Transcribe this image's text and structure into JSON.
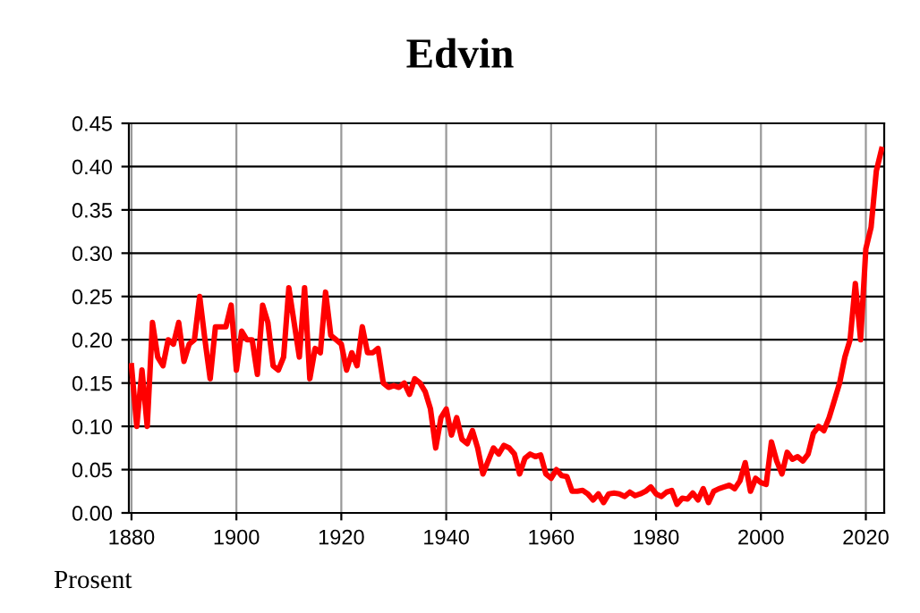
{
  "chart_data": {
    "type": "line",
    "title": "Edvin",
    "ylabel": "Prosent",
    "x": [
      1880,
      1881,
      1882,
      1883,
      1884,
      1885,
      1886,
      1887,
      1888,
      1889,
      1890,
      1891,
      1892,
      1893,
      1894,
      1895,
      1896,
      1897,
      1898,
      1899,
      1900,
      1901,
      1902,
      1903,
      1904,
      1905,
      1906,
      1907,
      1908,
      1909,
      1910,
      1911,
      1912,
      1913,
      1914,
      1915,
      1916,
      1917,
      1918,
      1919,
      1920,
      1921,
      1922,
      1923,
      1924,
      1925,
      1926,
      1927,
      1928,
      1929,
      1930,
      1931,
      1932,
      1933,
      1934,
      1935,
      1936,
      1937,
      1938,
      1939,
      1940,
      1941,
      1942,
      1943,
      1944,
      1945,
      1946,
      1947,
      1948,
      1949,
      1950,
      1951,
      1952,
      1953,
      1954,
      1955,
      1956,
      1957,
      1958,
      1959,
      1960,
      1961,
      1962,
      1963,
      1964,
      1965,
      1966,
      1967,
      1968,
      1969,
      1970,
      1971,
      1972,
      1973,
      1974,
      1975,
      1976,
      1977,
      1978,
      1979,
      1980,
      1981,
      1982,
      1983,
      1984,
      1985,
      1986,
      1987,
      1988,
      1989,
      1990,
      1991,
      1992,
      1993,
      1994,
      1995,
      1996,
      1997,
      1998,
      1999,
      2000,
      2001,
      2002,
      2003,
      2004,
      2005,
      2006,
      2007,
      2008,
      2009,
      2010,
      2011,
      2012,
      2013,
      2014,
      2015,
      2016,
      2017,
      2018,
      2019,
      2020,
      2021,
      2022,
      2023
    ],
    "series": [
      {
        "color": "#ff0000",
        "values": [
          0.17,
          0.1,
          0.165,
          0.1,
          0.22,
          0.18,
          0.17,
          0.2,
          0.195,
          0.22,
          0.175,
          0.195,
          0.2,
          0.25,
          0.2,
          0.155,
          0.215,
          0.215,
          0.215,
          0.24,
          0.165,
          0.21,
          0.2,
          0.2,
          0.16,
          0.24,
          0.22,
          0.17,
          0.165,
          0.18,
          0.26,
          0.22,
          0.18,
          0.26,
          0.155,
          0.19,
          0.185,
          0.255,
          0.205,
          0.2,
          0.195,
          0.165,
          0.185,
          0.17,
          0.215,
          0.185,
          0.185,
          0.19,
          0.15,
          0.145,
          0.147,
          0.145,
          0.15,
          0.137,
          0.155,
          0.15,
          0.14,
          0.12,
          0.075,
          0.11,
          0.12,
          0.09,
          0.11,
          0.085,
          0.08,
          0.095,
          0.075,
          0.045,
          0.06,
          0.075,
          0.068,
          0.078,
          0.075,
          0.068,
          0.045,
          0.063,
          0.068,
          0.065,
          0.067,
          0.045,
          0.04,
          0.05,
          0.043,
          0.042,
          0.025,
          0.025,
          0.026,
          0.022,
          0.015,
          0.022,
          0.012,
          0.022,
          0.023,
          0.022,
          0.019,
          0.024,
          0.02,
          0.022,
          0.025,
          0.03,
          0.022,
          0.019,
          0.024,
          0.026,
          0.01,
          0.017,
          0.016,
          0.023,
          0.015,
          0.028,
          0.012,
          0.025,
          0.028,
          0.03,
          0.032,
          0.028,
          0.037,
          0.058,
          0.025,
          0.04,
          0.035,
          0.033,
          0.082,
          0.06,
          0.045,
          0.07,
          0.062,
          0.065,
          0.06,
          0.068,
          0.092,
          0.1,
          0.095,
          0.11,
          0.13,
          0.15,
          0.18,
          0.2,
          0.265,
          0.2,
          0.305,
          0.33,
          0.395,
          0.42
        ]
      }
    ],
    "xlim": [
      1879.5,
      2023.5
    ],
    "ylim": [
      0,
      0.45
    ],
    "xticks": [
      1880,
      1900,
      1920,
      1940,
      1960,
      1980,
      2000,
      2020
    ],
    "yticks": [
      {
        "value": 0,
        "label": "0.00"
      },
      {
        "value": 0.05,
        "label": "0.05"
      },
      {
        "value": 0.1,
        "label": "0.10"
      },
      {
        "value": 0.15,
        "label": "0.15"
      },
      {
        "value": 0.2,
        "label": "0.20"
      },
      {
        "value": 0.25,
        "label": "0.25"
      },
      {
        "value": 0.3,
        "label": "0.30"
      },
      {
        "value": 0.35,
        "label": "0.35"
      },
      {
        "value": 0.4,
        "label": "0.40"
      },
      {
        "value": 0.45,
        "label": "0.45"
      }
    ],
    "grid": true,
    "line_style": "solid",
    "marker": "none"
  }
}
